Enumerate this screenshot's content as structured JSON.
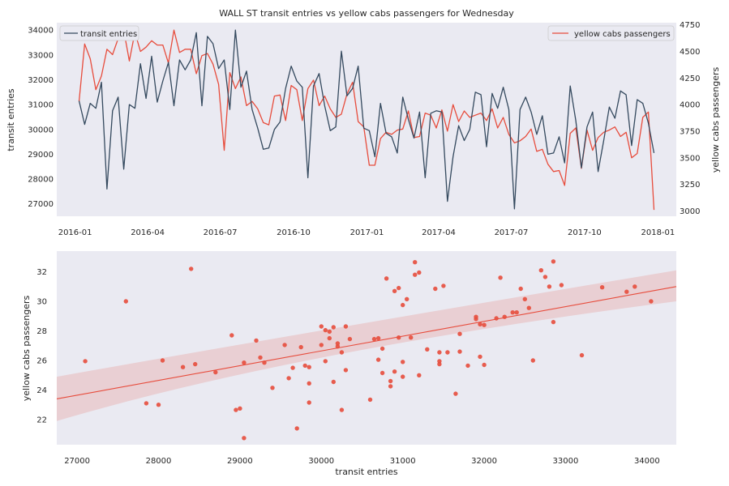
{
  "chart_data": [
    {
      "type": "line",
      "title": "WALL ST transit entries vs yellow cabs passengers for Wednesday",
      "xlabel": "",
      "ylabel_left": "transit entries",
      "ylabel_right": "yellow cabs passengers",
      "x_ticks": [
        "2016-01",
        "2016-04",
        "2016-07",
        "2016-10",
        "2017-01",
        "2017-04",
        "2017-07",
        "2017-10",
        "2018-01"
      ],
      "x_range": [
        "2015-12-09",
        "2018-01-24"
      ],
      "y_left_ticks": [
        27000,
        28000,
        29000,
        30000,
        31000,
        32000,
        33000,
        34000
      ],
      "y_left_range": [
        26500,
        34300
      ],
      "y_right_ticks": [
        3000,
        3250,
        3500,
        3750,
        4000,
        4250,
        4500,
        4750
      ],
      "y_right_range": [
        2950,
        4770
      ],
      "grid": false,
      "legend_left": {
        "label": "transit entries",
        "placement": "upper-left"
      },
      "legend_right": {
        "label": "yellow cabs passengers",
        "placement": "upper-right"
      },
      "series": [
        {
          "name": "transit entries",
          "axis": "left",
          "color": "#34495e",
          "dates": [
            "2016-01-06",
            "2016-01-13",
            "2016-01-20",
            "2016-01-27",
            "2016-02-03",
            "2016-02-10",
            "2016-02-17",
            "2016-02-24",
            "2016-03-02",
            "2016-03-09",
            "2016-03-16",
            "2016-03-23",
            "2016-03-30",
            "2016-04-06",
            "2016-04-13",
            "2016-04-20",
            "2016-04-27",
            "2016-05-04",
            "2016-05-11",
            "2016-05-18",
            "2016-05-25",
            "2016-06-01",
            "2016-06-08",
            "2016-06-15",
            "2016-06-22",
            "2016-06-29",
            "2016-07-06",
            "2016-07-13",
            "2016-07-20",
            "2016-07-27",
            "2016-08-03",
            "2016-08-10",
            "2016-08-17",
            "2016-08-24",
            "2016-08-31",
            "2016-09-07",
            "2016-09-14",
            "2016-09-21",
            "2016-09-28",
            "2016-10-05",
            "2016-10-12",
            "2016-10-19",
            "2016-10-26",
            "2016-11-02",
            "2016-11-09",
            "2016-11-16",
            "2016-11-23",
            "2016-11-30",
            "2016-12-07",
            "2016-12-14",
            "2016-12-21",
            "2016-12-28",
            "2017-01-04",
            "2017-01-11",
            "2017-01-18",
            "2017-01-25",
            "2017-02-01",
            "2017-02-08",
            "2017-02-15",
            "2017-02-22",
            "2017-03-01",
            "2017-03-08",
            "2017-03-15",
            "2017-03-22",
            "2017-03-29",
            "2017-04-05",
            "2017-04-12",
            "2017-04-19",
            "2017-04-26",
            "2017-05-03",
            "2017-05-10",
            "2017-05-17",
            "2017-05-24",
            "2017-05-31",
            "2017-06-07",
            "2017-06-14",
            "2017-06-21",
            "2017-06-28",
            "2017-07-05",
            "2017-07-12",
            "2017-07-19",
            "2017-07-26",
            "2017-08-02",
            "2017-08-09",
            "2017-08-16",
            "2017-08-23",
            "2017-08-30",
            "2017-09-06",
            "2017-09-13",
            "2017-09-20",
            "2017-09-27",
            "2017-10-04",
            "2017-10-11",
            "2017-10-18",
            "2017-10-25",
            "2017-11-01",
            "2017-11-08",
            "2017-11-15",
            "2017-11-22",
            "2017-11-29",
            "2017-12-06",
            "2017-12-13",
            "2017-12-20",
            "2017-12-27"
          ],
          "values": [
            31150,
            30200,
            31050,
            30850,
            31900,
            27600,
            30750,
            31300,
            28400,
            31000,
            30850,
            32650,
            31250,
            32950,
            31100,
            31950,
            32700,
            30950,
            32800,
            32400,
            32800,
            33900,
            30950,
            33750,
            33450,
            32450,
            32800,
            30800,
            34000,
            31700,
            32350,
            30800,
            30050,
            29200,
            29250,
            30000,
            30300,
            31650,
            32550,
            31950,
            31700,
            28050,
            31750,
            32250,
            30950,
            29950,
            30100,
            33150,
            31350,
            31650,
            32550,
            30050,
            29950,
            28900,
            31050,
            29850,
            29700,
            29050,
            31300,
            30400,
            29650,
            30700,
            28050,
            30650,
            30750,
            30700,
            27100,
            28900,
            30150,
            29550,
            30000,
            31500,
            31400,
            29300,
            31450,
            30850,
            31700,
            30800,
            26800,
            30800,
            31300,
            30700,
            29800,
            30550,
            29000,
            29050,
            29700,
            28650,
            31750,
            30350,
            28450,
            30100,
            30700,
            28300,
            29550,
            30900,
            30450,
            31550,
            31400,
            29350,
            31200,
            31050,
            30250,
            29050
          ]
        },
        {
          "name": "yellow cabs passengers",
          "axis": "right",
          "color": "#e74c3c",
          "dates": [
            "2016-01-06",
            "2016-01-13",
            "2016-01-20",
            "2016-01-27",
            "2016-02-03",
            "2016-02-10",
            "2016-02-17",
            "2016-02-24",
            "2016-03-02",
            "2016-03-09",
            "2016-03-16",
            "2016-03-23",
            "2016-03-30",
            "2016-04-06",
            "2016-04-13",
            "2016-04-20",
            "2016-04-27",
            "2016-05-04",
            "2016-05-11",
            "2016-05-18",
            "2016-05-25",
            "2016-06-01",
            "2016-06-08",
            "2016-06-15",
            "2016-06-22",
            "2016-06-29",
            "2016-07-06",
            "2016-07-13",
            "2016-07-20",
            "2016-07-27",
            "2016-08-03",
            "2016-08-10",
            "2016-08-17",
            "2016-08-24",
            "2016-08-31",
            "2016-09-07",
            "2016-09-14",
            "2016-09-21",
            "2016-09-28",
            "2016-10-05",
            "2016-10-12",
            "2016-10-19",
            "2016-10-26",
            "2016-11-02",
            "2016-11-09",
            "2016-11-16",
            "2016-11-23",
            "2016-11-30",
            "2016-12-07",
            "2016-12-14",
            "2016-12-21",
            "2016-12-28",
            "2017-01-04",
            "2017-01-11",
            "2017-01-18",
            "2017-01-25",
            "2017-02-01",
            "2017-02-08",
            "2017-02-15",
            "2017-02-22",
            "2017-03-01",
            "2017-03-08",
            "2017-03-15",
            "2017-03-22",
            "2017-03-29",
            "2017-04-05",
            "2017-04-12",
            "2017-04-19",
            "2017-04-26",
            "2017-05-03",
            "2017-05-10",
            "2017-05-17",
            "2017-05-24",
            "2017-05-31",
            "2017-06-07",
            "2017-06-14",
            "2017-06-21",
            "2017-06-28",
            "2017-07-05",
            "2017-07-12",
            "2017-07-19",
            "2017-07-26",
            "2017-08-02",
            "2017-08-09",
            "2017-08-16",
            "2017-08-23",
            "2017-08-30",
            "2017-09-06",
            "2017-09-13",
            "2017-09-20",
            "2017-09-27",
            "2017-10-04",
            "2017-10-11",
            "2017-10-18",
            "2017-10-25",
            "2017-11-01",
            "2017-11-08",
            "2017-11-15",
            "2017-11-22",
            "2017-11-29",
            "2017-12-06",
            "2017-12-13",
            "2017-12-20",
            "2017-12-27"
          ],
          "values": [
            4030,
            4570,
            4430,
            4140,
            4270,
            4520,
            4470,
            4620,
            4700,
            4410,
            4680,
            4500,
            4540,
            4600,
            4560,
            4560,
            4390,
            4700,
            4490,
            4520,
            4520,
            4290,
            4460,
            4480,
            4380,
            4190,
            3570,
            4300,
            4150,
            4260,
            3990,
            4030,
            3960,
            3830,
            3810,
            4080,
            4090,
            3850,
            4180,
            4140,
            3850,
            4150,
            4230,
            3990,
            4080,
            3960,
            3880,
            3910,
            4100,
            4210,
            3840,
            3790,
            3430,
            3430,
            3680,
            3740,
            3720,
            3760,
            3770,
            3940,
            3690,
            3700,
            3920,
            3900,
            3780,
            3950,
            3750,
            4000,
            3840,
            3940,
            3880,
            3900,
            3920,
            3850,
            3960,
            3780,
            3880,
            3720,
            3640,
            3660,
            3700,
            3770,
            3560,
            3580,
            3440,
            3370,
            3380,
            3240,
            3730,
            3780,
            3400,
            3760,
            3570,
            3690,
            3740,
            3760,
            3790,
            3700,
            3740,
            3500,
            3540,
            3880,
            3930,
            3010
          ]
        }
      ]
    },
    {
      "type": "scatter",
      "xlabel": "transit entries",
      "ylabel": "yellow cabs passengers",
      "x_ticks": [
        27000,
        28000,
        29000,
        30000,
        31000,
        32000,
        33000,
        34000
      ],
      "y_ticks": [
        22,
        24,
        26,
        28,
        30,
        32
      ],
      "xlim": [
        26750,
        34360
      ],
      "ylim": [
        20.3,
        33.4
      ],
      "grid": false,
      "color": "#e74c3c",
      "regression": {
        "x": [
          26750,
          34360
        ],
        "y": [
          23.4,
          31.0
        ],
        "ci_low": [
          21.9,
          30.0
        ],
        "ci_high": [
          24.9,
          32.1
        ]
      },
      "points": [
        [
          27100,
          25.95
        ],
        [
          27600,
          30
        ],
        [
          27850,
          23.1
        ],
        [
          28000,
          23
        ],
        [
          28050,
          26
        ],
        [
          28300,
          25.55
        ],
        [
          28400,
          32.2
        ],
        [
          28450,
          25.75
        ],
        [
          28700,
          25.2
        ],
        [
          28900,
          27.7
        ],
        [
          28950,
          22.65
        ],
        [
          29000,
          22.75
        ],
        [
          29050,
          20.75
        ],
        [
          29050,
          25.85
        ],
        [
          29200,
          27.35
        ],
        [
          29250,
          26.2
        ],
        [
          29300,
          25.85
        ],
        [
          29400,
          24.15
        ],
        [
          29550,
          27.05
        ],
        [
          29600,
          24.8
        ],
        [
          29650,
          25.5
        ],
        [
          29700,
          21.4
        ],
        [
          29750,
          26.9
        ],
        [
          29800,
          25.65
        ],
        [
          29850,
          25.55
        ],
        [
          29850,
          24.45
        ],
        [
          29850,
          23.15
        ],
        [
          30000,
          28.3
        ],
        [
          30000,
          27.05
        ],
        [
          30050,
          25.95
        ],
        [
          30050,
          28.05
        ],
        [
          30100,
          27.95
        ],
        [
          30100,
          27.5
        ],
        [
          30150,
          28.25
        ],
        [
          30150,
          24.55
        ],
        [
          30200,
          26.95
        ],
        [
          30200,
          27.15
        ],
        [
          30250,
          26.55
        ],
        [
          30250,
          22.65
        ],
        [
          30300,
          28.3
        ],
        [
          30350,
          27.45
        ],
        [
          30300,
          25.35
        ],
        [
          30600,
          23.35
        ],
        [
          30650,
          27.45
        ],
        [
          30700,
          26.05
        ],
        [
          30700,
          27.5
        ],
        [
          30750,
          26.8
        ],
        [
          30750,
          25.15
        ],
        [
          30800,
          31.55
        ],
        [
          30850,
          24.6
        ],
        [
          30850,
          24.25
        ],
        [
          30900,
          30.7
        ],
        [
          30950,
          30.9
        ],
        [
          30900,
          25.25
        ],
        [
          30950,
          27.55
        ],
        [
          31000,
          24.9
        ],
        [
          31000,
          25.9
        ],
        [
          31000,
          29.75
        ],
        [
          31050,
          30.15
        ],
        [
          31100,
          27.55
        ],
        [
          31150,
          32.65
        ],
        [
          31150,
          31.8
        ],
        [
          31200,
          25
        ],
        [
          31200,
          31.95
        ],
        [
          31300,
          26.75
        ],
        [
          31400,
          30.85
        ],
        [
          31450,
          26.55
        ],
        [
          31450,
          25.95
        ],
        [
          31450,
          25.75
        ],
        [
          31500,
          31.05
        ],
        [
          31550,
          26.55
        ],
        [
          31650,
          23.75
        ],
        [
          31700,
          26.6
        ],
        [
          31700,
          27.8
        ],
        [
          31800,
          25.65
        ],
        [
          31900,
          28.8
        ],
        [
          31900,
          28.95
        ],
        [
          31950,
          26.25
        ],
        [
          31950,
          28.45
        ],
        [
          32000,
          25.7
        ],
        [
          32000,
          28.4
        ],
        [
          32150,
          28.85
        ],
        [
          32200,
          31.6
        ],
        [
          32250,
          28.95
        ],
        [
          32350,
          29.25
        ],
        [
          32400,
          29.25
        ],
        [
          32450,
          30.85
        ],
        [
          32500,
          30.15
        ],
        [
          32550,
          29.55
        ],
        [
          32600,
          26
        ],
        [
          32700,
          32.1
        ],
        [
          32750,
          31.65
        ],
        [
          32800,
          31
        ],
        [
          32850,
          28.6
        ],
        [
          32850,
          32.7
        ],
        [
          32950,
          31.1
        ],
        [
          33200,
          26.35
        ],
        [
          33450,
          30.95
        ],
        [
          33750,
          30.65
        ],
        [
          33850,
          31
        ],
        [
          34050,
          30
        ]
      ]
    }
  ]
}
